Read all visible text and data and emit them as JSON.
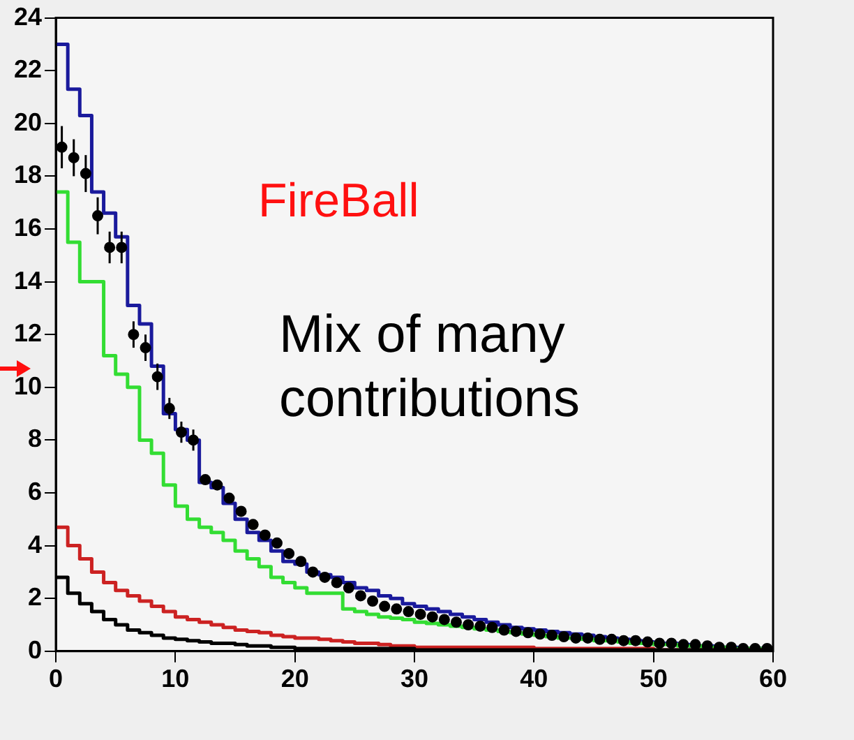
{
  "chart_data": {
    "type": "histogram",
    "annotations": [
      "FireBall",
      "Mix of many contributions"
    ],
    "bins": [
      0,
      1,
      2,
      3,
      4,
      5,
      6,
      7,
      8,
      9,
      10,
      11,
      12,
      13,
      14,
      15,
      16,
      17,
      18,
      19,
      20,
      21,
      22,
      23,
      24,
      25,
      26,
      27,
      28,
      29,
      30,
      31,
      32,
      33,
      34,
      35,
      36,
      37,
      38,
      39,
      40,
      41,
      42,
      43,
      44,
      45,
      46,
      47,
      48,
      49,
      50,
      51,
      52,
      53,
      54,
      55,
      56,
      57,
      58,
      59,
      60
    ],
    "series": [
      {
        "color": "#1a1a9c",
        "values": [
          23,
          21.3,
          20.3,
          17.4,
          16.6,
          15.7,
          13.1,
          12.4,
          10.8,
          9.0,
          8.4,
          8.0,
          6.4,
          6.2,
          5.6,
          5.0,
          4.5,
          4.2,
          3.8,
          3.4,
          3.3,
          3.0,
          2.9,
          2.8,
          2.6,
          2.4,
          2.3,
          2.1,
          2.0,
          1.8,
          1.7,
          1.6,
          1.5,
          1.4,
          1.3,
          1.2,
          1.1,
          1.0,
          0.9,
          0.85,
          0.8,
          0.75,
          0.7,
          0.65,
          0.6,
          0.55,
          0.5,
          0.45,
          0.4,
          0.35,
          0.3,
          0.3,
          0.25,
          0.2,
          0.2,
          0.15,
          0.15,
          0.1,
          0.1,
          0.1
        ]
      },
      {
        "color": "#33dd33",
        "values": [
          17.4,
          15.5,
          14.0,
          14.0,
          11.2,
          10.5,
          10.0,
          8.0,
          7.5,
          6.3,
          5.5,
          5.0,
          4.7,
          4.5,
          4.2,
          3.8,
          3.5,
          3.2,
          2.8,
          2.6,
          2.4,
          2.2,
          2.2,
          2.2,
          1.6,
          1.5,
          1.4,
          1.3,
          1.25,
          1.2,
          1.1,
          1.05,
          1.0,
          0.95,
          0.9,
          0.85,
          0.8,
          0.75,
          0.7,
          0.65,
          0.6,
          0.55,
          0.5,
          0.5,
          0.45,
          0.4,
          0.4,
          0.35,
          0.3,
          0.3,
          0.25,
          0.25,
          0.2,
          0.2,
          0.15,
          0.15,
          0.1,
          0.1,
          0.1,
          0.05
        ]
      },
      {
        "color": "#cc2222",
        "values": [
          4.7,
          4.0,
          3.5,
          3.0,
          2.6,
          2.3,
          2.1,
          1.9,
          1.7,
          1.5,
          1.3,
          1.2,
          1.1,
          1.0,
          0.9,
          0.8,
          0.75,
          0.7,
          0.6,
          0.55,
          0.5,
          0.5,
          0.45,
          0.4,
          0.35,
          0.3,
          0.3,
          0.25,
          0.2,
          0.2,
          0.15,
          0.15,
          0.15,
          0.15,
          0.15,
          0.15,
          0.15,
          0.15,
          0.15,
          0.15,
          0.1,
          0.1,
          0.1,
          0.1,
          0.1,
          0.1,
          0.1,
          0.1,
          0.1,
          0.1,
          0.05,
          0.05,
          0.05,
          0.05,
          0.05,
          0.05,
          0.05,
          0.05,
          0.05,
          0.05
        ]
      },
      {
        "color": "#000000",
        "values": [
          2.8,
          2.2,
          1.8,
          1.5,
          1.2,
          1.0,
          0.8,
          0.7,
          0.6,
          0.5,
          0.45,
          0.4,
          0.35,
          0.3,
          0.3,
          0.25,
          0.2,
          0.2,
          0.15,
          0.15,
          0.1,
          0.1,
          0.1,
          0.1,
          0.1,
          0.1,
          0.1,
          0.1,
          0.1,
          0.1,
          0.05,
          0.05,
          0.05,
          0.05,
          0.05,
          0.05,
          0.05,
          0.05,
          0.05,
          0.05,
          0.05,
          0.05,
          0.05,
          0.05,
          0.05,
          0.05,
          0.05,
          0.05,
          0.05,
          0.05,
          0.05,
          0.05,
          0.05,
          0.05,
          0.05,
          0.05,
          0.05,
          0.05,
          0.05,
          0.05
        ]
      },
      {
        "type": "scatter",
        "color": "#000000",
        "marker": "circle",
        "x": [
          0.5,
          1.5,
          2.5,
          3.5,
          4.5,
          5.5,
          6.5,
          7.5,
          8.5,
          9.5,
          10.5,
          11.5,
          12.5,
          13.5,
          14.5,
          15.5,
          16.5,
          17.5,
          18.5,
          19.5,
          20.5,
          21.5,
          22.5,
          23.5,
          24.5,
          25.5,
          26.5,
          27.5,
          28.5,
          29.5,
          30.5,
          31.5,
          32.5,
          33.5,
          34.5,
          35.5,
          36.5,
          37.5,
          38.5,
          39.5,
          40.5,
          41.5,
          42.5,
          43.5,
          44.5,
          45.5,
          46.5,
          47.5,
          48.5,
          49.5,
          50.5,
          51.5,
          52.5,
          53.5,
          54.5,
          55.5,
          56.5,
          57.5,
          58.5,
          59.5
        ],
        "values": [
          19.1,
          18.7,
          18.1,
          16.5,
          15.3,
          15.3,
          12.0,
          11.5,
          10.4,
          9.2,
          8.3,
          8.0,
          6.5,
          6.3,
          5.8,
          5.3,
          4.8,
          4.4,
          4.1,
          3.7,
          3.4,
          3.0,
          2.8,
          2.6,
          2.4,
          2.1,
          1.9,
          1.7,
          1.6,
          1.5,
          1.4,
          1.3,
          1.2,
          1.1,
          1.0,
          0.95,
          0.9,
          0.8,
          0.75,
          0.7,
          0.65,
          0.6,
          0.55,
          0.5,
          0.5,
          0.45,
          0.45,
          0.4,
          0.4,
          0.35,
          0.3,
          0.3,
          0.25,
          0.25,
          0.2,
          0.15,
          0.15,
          0.1,
          0.1,
          0.1
        ],
        "errors": [
          0.8,
          0.7,
          0.7,
          0.7,
          0.6,
          0.6,
          0.5,
          0.5,
          0.5,
          0.4,
          0.4,
          0.4,
          null,
          null,
          null,
          null,
          null,
          null,
          null,
          null,
          null,
          null,
          null,
          null,
          null,
          null,
          null,
          null,
          null,
          null,
          null,
          null,
          null,
          null,
          null,
          null,
          null,
          null,
          null,
          null,
          null,
          null,
          null,
          null,
          null,
          null,
          null,
          null,
          null,
          null,
          null,
          null,
          null,
          null,
          null,
          null,
          null,
          null,
          null,
          null
        ]
      }
    ],
    "xlim": [
      0,
      60
    ],
    "xticks": [
      0,
      10,
      20,
      30,
      40,
      50,
      60
    ],
    "ylim": [
      0,
      24
    ],
    "yticks": [
      0,
      2,
      4,
      6,
      8,
      10,
      12,
      14,
      16,
      18,
      20,
      22,
      24
    ],
    "grid": false,
    "legend": false
  }
}
